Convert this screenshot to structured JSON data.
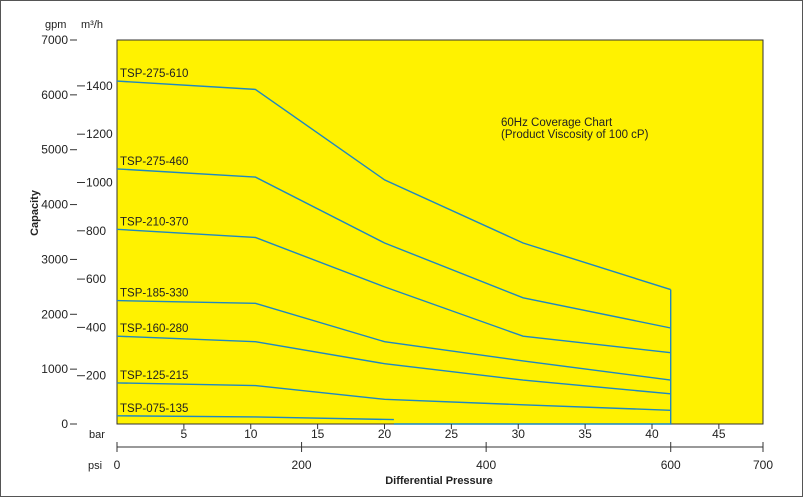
{
  "chart_data": {
    "type": "line",
    "title": "60Hz Coverage Chart",
    "subtitle": "(Product Viscosity of 100 cP)",
    "xlabel": "Differential Pressure",
    "ylabel": "Capacity",
    "plot_background": "#FFF200",
    "line_color": "#1f88c0",
    "grid": false,
    "y_axes": {
      "gpm": {
        "unit": "gpm",
        "range": [
          0,
          7000
        ],
        "ticks": [
          0,
          1000,
          2000,
          3000,
          4000,
          5000,
          6000,
          7000
        ]
      },
      "m3h": {
        "unit": "m³/h",
        "range": [
          0,
          1590
        ],
        "ticks": [
          200,
          400,
          600,
          800,
          1000,
          1200,
          1400
        ]
      }
    },
    "x_axes": {
      "psi": {
        "unit": "psi",
        "range": [
          0,
          700
        ],
        "ticks": [
          0,
          200,
          400,
          600,
          700
        ]
      },
      "bar": {
        "unit": "bar",
        "range": [
          0,
          48.3
        ],
        "ticks": [
          5,
          10,
          15,
          20,
          25,
          30,
          35,
          40,
          45
        ]
      }
    },
    "series": [
      {
        "name": "TSP-275-610",
        "x": [
          0,
          150,
          290,
          440,
          600
        ],
        "y": [
          6250,
          6100,
          4450,
          3300,
          2450
        ]
      },
      {
        "name": "TSP-275-460",
        "x": [
          0,
          150,
          290,
          440,
          600
        ],
        "y": [
          4650,
          4500,
          3300,
          2300,
          1750
        ]
      },
      {
        "name": "TSP-210-370",
        "x": [
          0,
          150,
          290,
          440,
          600
        ],
        "y": [
          3550,
          3400,
          2500,
          1600,
          1300
        ]
      },
      {
        "name": "TSP-185-330",
        "x": [
          0,
          150,
          290,
          440,
          600
        ],
        "y": [
          2250,
          2200,
          1500,
          1150,
          800
        ]
      },
      {
        "name": "TSP-160-280",
        "x": [
          0,
          150,
          290,
          440,
          600
        ],
        "y": [
          1600,
          1500,
          1100,
          800,
          550
        ]
      },
      {
        "name": "TSP-125-215",
        "x": [
          0,
          150,
          290,
          440,
          600
        ],
        "y": [
          750,
          700,
          450,
          350,
          250
        ]
      },
      {
        "name": "TSP-075-135",
        "x": [
          0,
          150,
          300
        ],
        "y": [
          150,
          130,
          80
        ]
      }
    ],
    "boundary": {
      "x": [
        300,
        600,
        600
      ],
      "y": [
        0,
        0,
        2450
      ]
    }
  }
}
